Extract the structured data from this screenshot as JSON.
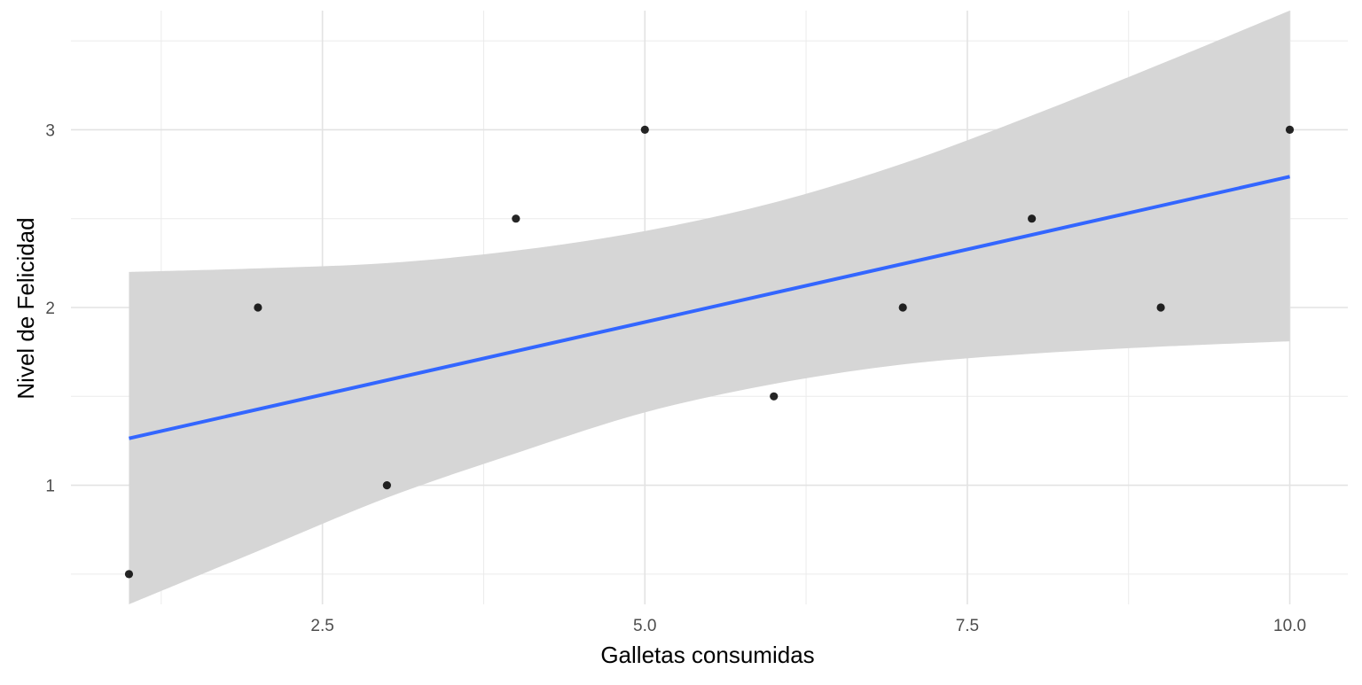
{
  "chart_data": {
    "type": "scatter",
    "title": "",
    "xlabel": "Galletas consumidas",
    "ylabel": "Nivel de Felicidad",
    "xlim": [
      0.55,
      10.45
    ],
    "ylim": [
      0.33,
      3.67
    ],
    "x_ticks": [
      2.5,
      5.0,
      7.5,
      10.0
    ],
    "x_tick_labels": [
      "2.5",
      "5.0",
      "7.5",
      "10.0"
    ],
    "y_ticks": [
      1,
      2,
      3
    ],
    "y_tick_labels": [
      "1",
      "2",
      "3"
    ],
    "grid": true,
    "legend": "none",
    "points": {
      "x": [
        1,
        2,
        3,
        4,
        5,
        6,
        7,
        8,
        9,
        10
      ],
      "y": [
        0.5,
        2,
        1,
        2.5,
        3,
        1.5,
        2,
        2.5,
        2,
        3
      ],
      "color": "#000000"
    },
    "regression": {
      "method": "lm",
      "intercept": 1.1,
      "slope": 0.1636,
      "color": "#3366ff",
      "confidence_band": {
        "x": [
          1,
          2,
          3,
          4,
          5,
          6,
          7,
          8,
          9,
          10
        ],
        "lower": [
          0.33,
          0.63,
          0.93,
          1.18,
          1.41,
          1.57,
          1.68,
          1.74,
          1.78,
          1.81
        ],
        "upper": [
          2.2,
          2.22,
          2.25,
          2.32,
          2.43,
          2.59,
          2.81,
          3.08,
          3.37,
          3.67
        ],
        "color": "#d6d6d6"
      }
    }
  }
}
